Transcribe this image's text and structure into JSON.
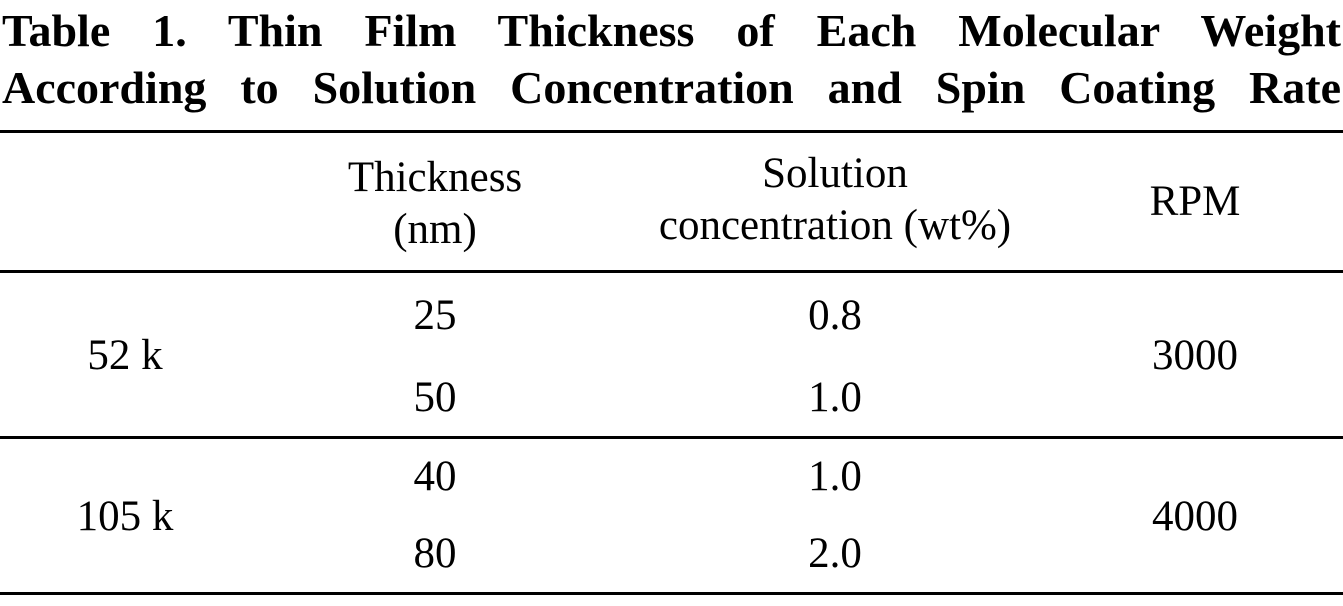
{
  "caption": {
    "line1": "Table 1. Thin Film Thickness of Each Molecular Weight",
    "line2": "According to Solution Concentration and Spin Coating Rate"
  },
  "table": {
    "headers": {
      "molecular_weight": "",
      "thickness": [
        "Thickness",
        "(nm)"
      ],
      "concentration": [
        "Solution",
        "concentration (wt%)"
      ],
      "rpm": "RPM"
    },
    "groups": [
      {
        "molecular_weight": "52 k",
        "rpm": "3000",
        "rows": [
          {
            "thickness": "25",
            "concentration": "0.8"
          },
          {
            "thickness": "50",
            "concentration": "1.0"
          }
        ]
      },
      {
        "molecular_weight": "105 k",
        "rpm": "4000",
        "rows": [
          {
            "thickness": "40",
            "concentration": "1.0"
          },
          {
            "thickness": "80",
            "concentration": "2.0"
          }
        ]
      }
    ]
  }
}
